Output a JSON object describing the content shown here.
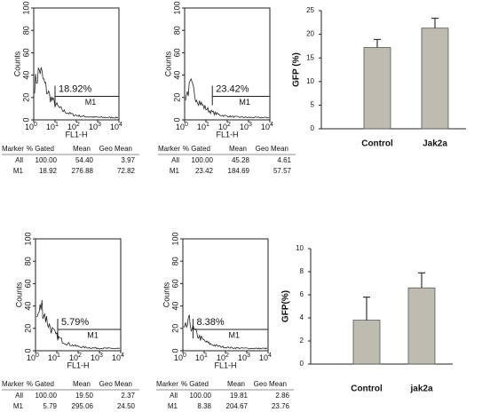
{
  "flow_panels": [
    {
      "histograms": [
        {
          "ylabel": "Counts",
          "xlabel": "FL1-H",
          "ylim": [
            0,
            100
          ],
          "yticks": [
            0,
            20,
            40,
            60,
            80,
            100
          ],
          "xscale": "log",
          "xlim": [
            1,
            10000
          ],
          "xticks": [
            {
              "value": 1,
              "label": "10",
              "exponent": "0"
            },
            {
              "value": 10,
              "label": "10",
              "exponent": "1"
            },
            {
              "value": 100,
              "label": "10",
              "exponent": "2"
            },
            {
              "value": 1000,
              "label": "10",
              "exponent": "3"
            },
            {
              "value": 10000,
              "label": "10",
              "exponent": "4"
            }
          ],
          "gate": {
            "label": "M1",
            "percent": "18.92%",
            "start": 10,
            "end": 10000,
            "level": 21
          },
          "table": {
            "header": [
              "Marker",
              "% Gated",
              "Mean",
              "Geo Mean"
            ],
            "rows": [
              [
                "All",
                "100.00",
                "54.40",
                "3.97"
              ],
              [
                "M1",
                "18.92",
                "276.88",
                "72.82"
              ]
            ]
          }
        },
        {
          "ylabel": "Counts",
          "xlabel": "FL1-H",
          "ylim": [
            0,
            100
          ],
          "yticks": [
            0,
            20,
            40,
            60,
            80,
            100
          ],
          "xscale": "log",
          "xlim": [
            1,
            10000
          ],
          "xticks": [
            {
              "value": 1,
              "label": "10",
              "exponent": "0"
            },
            {
              "value": 10,
              "label": "10",
              "exponent": "1"
            },
            {
              "value": 100,
              "label": "10",
              "exponent": "2"
            },
            {
              "value": 1000,
              "label": "10",
              "exponent": "3"
            },
            {
              "value": 10000,
              "label": "10",
              "exponent": "4"
            }
          ],
          "gate": {
            "label": "M1",
            "percent": "23.42%",
            "start": 20,
            "end": 10000,
            "level": 21
          },
          "table": {
            "header": [
              "Marker",
              "% Gated",
              "Mean",
              "Geo Mean"
            ],
            "rows": [
              [
                "All",
                "100.00",
                "45.28",
                "4.61"
              ],
              [
                "M1",
                "23.42",
                "184.69",
                "57.57"
              ]
            ]
          }
        }
      ]
    },
    {
      "histograms": [
        {
          "ylabel": "Counts",
          "xlabel": "FL1-H",
          "ylim": [
            0,
            100
          ],
          "yticks": [
            0,
            20,
            40,
            60,
            80,
            100
          ],
          "xscale": "log",
          "xlim": [
            1,
            10000
          ],
          "xticks": [
            {
              "value": 1,
              "label": "10",
              "exponent": "0"
            },
            {
              "value": 10,
              "label": "10",
              "exponent": "1"
            },
            {
              "value": 100,
              "label": "10",
              "exponent": "2"
            },
            {
              "value": 1000,
              "label": "10",
              "exponent": "3"
            },
            {
              "value": 10000,
              "label": "10",
              "exponent": "4"
            }
          ],
          "gate": {
            "label": "M1",
            "percent": "5.79%",
            "start": 11,
            "end": 10000,
            "level": 19
          },
          "table": {
            "header": [
              "Marker",
              "% Gated",
              "Mean",
              "Geo Mean"
            ],
            "rows": [
              [
                "All",
                "100.00",
                "19.50",
                "2.37"
              ],
              [
                "M1",
                "5.79",
                "295.06",
                "24.50"
              ]
            ]
          }
        },
        {
          "ylabel": "Counts",
          "xlabel": "FL1-H",
          "ylim": [
            0,
            100
          ],
          "yticks": [
            0,
            20,
            40,
            60,
            80,
            100
          ],
          "xscale": "log",
          "xlim": [
            1,
            10000
          ],
          "xticks": [
            {
              "value": 1,
              "label": "10",
              "exponent": "0"
            },
            {
              "value": 10,
              "label": "10",
              "exponent": "1"
            },
            {
              "value": 100,
              "label": "10",
              "exponent": "2"
            },
            {
              "value": 1000,
              "label": "10",
              "exponent": "3"
            },
            {
              "value": 10000,
              "label": "10",
              "exponent": "4"
            }
          ],
          "gate": {
            "label": "M1",
            "percent": "8.38%",
            "start": 3,
            "end": 10000,
            "level": 19
          },
          "table": {
            "header": [
              "Marker",
              "% Gated",
              "Mean",
              "Geo Mean"
            ],
            "rows": [
              [
                "All",
                "100.00",
                "19.81",
                "2.86"
              ],
              [
                "M1",
                "8.38",
                "204.67",
                "23.76"
              ]
            ]
          }
        }
      ]
    }
  ],
  "chart_data": [
    {
      "type": "bar",
      "ylabel": "GFP (%)",
      "categories": [
        "Control",
        "Jak2a"
      ],
      "values": [
        17.2,
        21.3
      ],
      "errors": [
        1.7,
        2.1
      ],
      "color": "#bebcb1",
      "ylim": [
        0,
        25
      ],
      "yticks": [
        0,
        5,
        10,
        15,
        20,
        25
      ]
    },
    {
      "type": "bar",
      "ylabel": "GFP(%)",
      "categories": [
        "Control",
        "jak2a"
      ],
      "values": [
        3.8,
        6.6
      ],
      "errors": [
        2.0,
        1.3
      ],
      "color": "#bebcb1",
      "ylim": [
        0,
        10
      ],
      "yticks": [
        0,
        2,
        4,
        6,
        8,
        10
      ]
    }
  ]
}
